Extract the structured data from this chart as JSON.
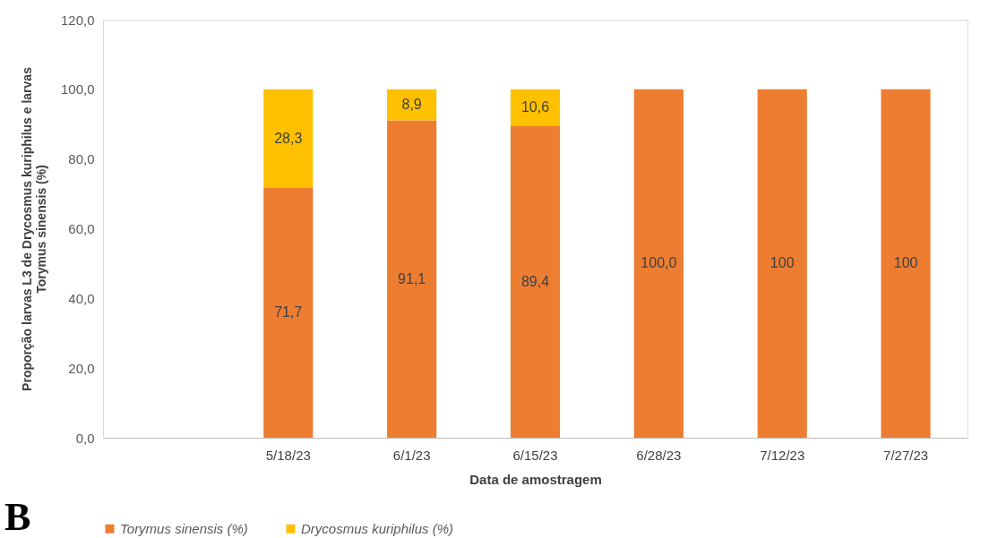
{
  "chart_data": {
    "type": "bar",
    "stacked": true,
    "categories": [
      null,
      "5/18/23",
      "6/1/23",
      "6/15/23",
      "6/28/23",
      "7/12/23",
      "7/27/23"
    ],
    "series": [
      {
        "name": "Torymus sinensis (%)",
        "color": "#ed7d31",
        "values": [
          null,
          71.7,
          91.1,
          89.4,
          100,
          100,
          100
        ],
        "value_labels": [
          null,
          "71,7",
          "91,1",
          "89,4",
          "100,0",
          "100",
          "100"
        ]
      },
      {
        "name": "Drycosmus kuriphilus (%)",
        "color": "#ffc000",
        "values": [
          null,
          28.3,
          8.9,
          10.6,
          null,
          null,
          null
        ],
        "value_labels": [
          null,
          "28,3",
          "8,9",
          "10,6",
          null,
          null,
          null
        ]
      }
    ],
    "xlabel": "Data de amostragem",
    "ylabel": "Proporção larvas L3 de Drycosmus kuriphilus e larvas\nTorymus sinensis (%)",
    "ylim": [
      0,
      120
    ],
    "yticks": [
      {
        "value": 0,
        "label": "0,0"
      },
      {
        "value": 20,
        "label": "20,0"
      },
      {
        "value": 40,
        "label": "40,0"
      },
      {
        "value": 60,
        "label": "60,0"
      },
      {
        "value": 80,
        "label": "80,0"
      },
      {
        "value": 100,
        "label": "100,0"
      },
      {
        "value": 120,
        "label": "120,0"
      }
    ],
    "grid": false,
    "legend": "bottom",
    "annotations": [
      "B"
    ]
  }
}
